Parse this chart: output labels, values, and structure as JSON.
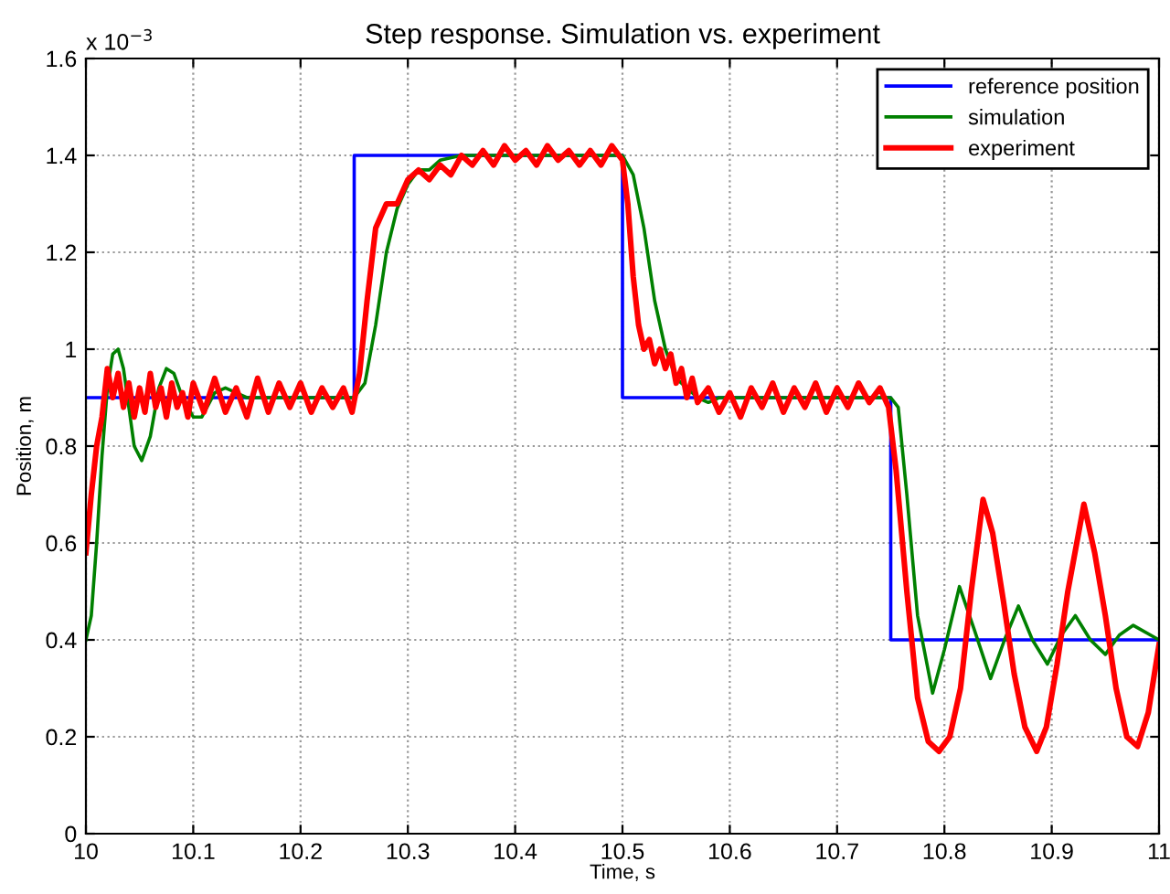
{
  "chart_data": {
    "type": "line",
    "title": "Step response. Simulation vs. experiment",
    "xlabel": "Time, s",
    "ylabel": "Position, m",
    "annotations": [
      "x 10$^{−3}$"
    ],
    "xlim": [
      10,
      11
    ],
    "xticks": [
      10,
      10.1,
      10.2,
      10.3,
      10.4,
      10.5,
      10.6,
      10.7,
      10.8,
      10.9,
      11
    ],
    "ylim": [
      0,
      1.6
    ],
    "yticks": [
      0,
      0.2,
      0.4,
      0.6,
      0.8,
      1,
      1.2,
      1.4,
      1.6
    ],
    "grid": true,
    "legend": "top right",
    "line_style": "solid",
    "marker": "none",
    "series": [
      {
        "name": "reference position",
        "color": "#0000ff",
        "x": [
          10,
          10.25,
          10.25,
          10.5,
          10.5,
          10.75,
          10.75,
          11
        ],
        "values": [
          0.9,
          0.9,
          1.4,
          1.4,
          0.9,
          0.9,
          0.4,
          0.4
        ]
      },
      {
        "name": "simulation",
        "color": "#008000",
        "x": [
          10.0,
          10.005,
          10.01,
          10.015,
          10.02,
          10.025,
          10.03,
          10.035,
          10.04,
          10.045,
          10.052,
          10.06,
          10.068,
          10.075,
          10.082,
          10.09,
          10.1,
          10.108,
          10.12,
          10.13,
          10.15,
          10.25,
          10.26,
          10.27,
          10.28,
          10.29,
          10.3,
          10.31,
          10.32,
          10.33,
          10.35,
          10.5,
          10.51,
          10.52,
          10.53,
          10.54,
          10.55,
          10.56,
          10.57,
          10.58,
          10.59,
          10.75,
          10.757,
          10.765,
          10.775,
          10.789,
          10.8,
          10.814,
          10.828,
          10.843,
          10.856,
          10.869,
          10.882,
          10.896,
          10.909,
          10.922,
          10.936,
          10.95,
          10.963,
          10.976,
          11.0
        ],
        "values": [
          0.4,
          0.45,
          0.6,
          0.78,
          0.92,
          0.99,
          1.0,
          0.96,
          0.88,
          0.8,
          0.77,
          0.82,
          0.92,
          0.96,
          0.95,
          0.9,
          0.86,
          0.86,
          0.91,
          0.92,
          0.9,
          0.9,
          0.93,
          1.05,
          1.2,
          1.29,
          1.34,
          1.37,
          1.37,
          1.39,
          1.4,
          1.4,
          1.36,
          1.25,
          1.1,
          1.0,
          0.94,
          0.92,
          0.9,
          0.89,
          0.9,
          0.9,
          0.88,
          0.7,
          0.45,
          0.29,
          0.38,
          0.51,
          0.42,
          0.32,
          0.4,
          0.47,
          0.4,
          0.35,
          0.41,
          0.45,
          0.4,
          0.37,
          0.41,
          0.43,
          0.4
        ]
      },
      {
        "name": "experiment",
        "color": "#ff0000",
        "x": [
          10.0,
          10.005,
          10.01,
          10.015,
          10.02,
          10.025,
          10.03,
          10.035,
          10.04,
          10.045,
          10.05,
          10.055,
          10.06,
          10.065,
          10.07,
          10.075,
          10.08,
          10.085,
          10.09,
          10.095,
          10.1,
          10.11,
          10.12,
          10.13,
          10.14,
          10.15,
          10.16,
          10.17,
          10.18,
          10.19,
          10.2,
          10.21,
          10.22,
          10.23,
          10.24,
          10.248,
          10.255,
          10.262,
          10.27,
          10.28,
          10.29,
          10.3,
          10.31,
          10.32,
          10.33,
          10.34,
          10.35,
          10.36,
          10.37,
          10.38,
          10.39,
          10.4,
          10.41,
          10.42,
          10.43,
          10.44,
          10.45,
          10.46,
          10.47,
          10.48,
          10.49,
          10.5,
          10.505,
          10.51,
          10.515,
          10.52,
          10.525,
          10.53,
          10.535,
          10.54,
          10.545,
          10.55,
          10.555,
          10.56,
          10.565,
          10.57,
          10.58,
          10.59,
          10.6,
          10.61,
          10.62,
          10.63,
          10.64,
          10.65,
          10.66,
          10.67,
          10.68,
          10.69,
          10.7,
          10.71,
          10.72,
          10.73,
          10.74,
          10.748,
          10.755,
          10.765,
          10.775,
          10.785,
          10.795,
          10.805,
          10.815,
          10.825,
          10.836,
          10.845,
          10.855,
          10.865,
          10.875,
          10.886,
          10.895,
          10.905,
          10.915,
          10.93,
          10.94,
          10.95,
          10.96,
          10.97,
          10.98,
          10.99,
          11.0
        ],
        "values": [
          0.58,
          0.7,
          0.8,
          0.86,
          0.96,
          0.9,
          0.95,
          0.88,
          0.93,
          0.86,
          0.92,
          0.87,
          0.95,
          0.88,
          0.92,
          0.86,
          0.93,
          0.88,
          0.91,
          0.86,
          0.93,
          0.87,
          0.94,
          0.87,
          0.92,
          0.86,
          0.94,
          0.87,
          0.93,
          0.88,
          0.93,
          0.87,
          0.92,
          0.88,
          0.92,
          0.87,
          0.95,
          1.1,
          1.25,
          1.3,
          1.3,
          1.35,
          1.37,
          1.35,
          1.38,
          1.36,
          1.4,
          1.38,
          1.41,
          1.38,
          1.42,
          1.39,
          1.41,
          1.38,
          1.42,
          1.39,
          1.41,
          1.38,
          1.41,
          1.38,
          1.42,
          1.39,
          1.3,
          1.15,
          1.05,
          1.0,
          1.02,
          0.97,
          1.0,
          0.96,
          0.99,
          0.93,
          0.96,
          0.9,
          0.94,
          0.89,
          0.92,
          0.87,
          0.91,
          0.86,
          0.92,
          0.88,
          0.93,
          0.87,
          0.92,
          0.88,
          0.93,
          0.87,
          0.92,
          0.88,
          0.93,
          0.89,
          0.92,
          0.88,
          0.75,
          0.5,
          0.28,
          0.19,
          0.17,
          0.2,
          0.3,
          0.5,
          0.69,
          0.62,
          0.48,
          0.33,
          0.22,
          0.17,
          0.22,
          0.35,
          0.5,
          0.68,
          0.58,
          0.45,
          0.3,
          0.2,
          0.18,
          0.25,
          0.39
        ]
      }
    ]
  }
}
